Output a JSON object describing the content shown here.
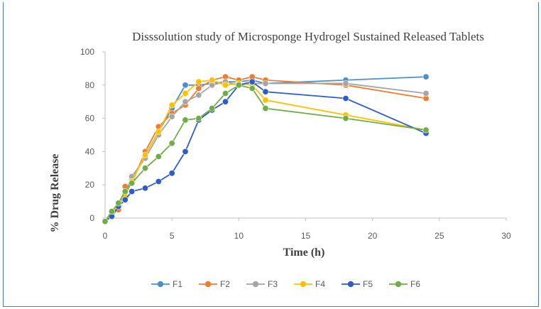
{
  "chart_data": {
    "type": "line",
    "title": "Disssolution study of Microsponge Hydrogel Sustained Released Tablets",
    "xlabel": "Time (h)",
    "ylabel": "% Drug Release",
    "xlim": [
      0,
      30
    ],
    "ylim": [
      0,
      100
    ],
    "x_ticks": [
      "0",
      "5",
      "10",
      "15",
      "20",
      "25",
      "30"
    ],
    "y_ticks": [
      "0",
      "20",
      "40",
      "60",
      "80",
      "100"
    ],
    "legend_position": "bottom",
    "grid": false,
    "series": [
      {
        "name": "F1",
        "color": "#4a90d0",
        "x": [
          0,
          0.5,
          1,
          1.5,
          2,
          3,
          4,
          5,
          6,
          7,
          8,
          9,
          10,
          11,
          12,
          18,
          24
        ],
        "y": [
          -2,
          3,
          7,
          16,
          23,
          38,
          52,
          66,
          80,
          80,
          81,
          82,
          82,
          83,
          81,
          83,
          85
        ]
      },
      {
        "name": "F2",
        "color": "#ed7d31",
        "x": [
          0,
          0.5,
          1,
          1.5,
          2,
          3,
          4,
          5,
          6,
          7,
          8,
          9,
          10,
          11,
          12,
          18,
          24
        ],
        "y": [
          -2,
          2,
          5,
          19,
          21,
          40,
          55,
          63,
          68,
          78,
          83,
          85,
          83,
          85,
          83,
          80,
          72
        ]
      },
      {
        "name": "F3",
        "color": "#a5a5a5",
        "x": [
          0,
          0.5,
          1,
          1.5,
          2,
          3,
          4,
          5,
          6,
          7,
          8,
          9,
          10,
          11,
          12,
          18,
          24
        ],
        "y": [
          -2,
          3,
          8,
          15,
          25,
          36,
          50,
          61,
          70,
          74,
          80,
          82,
          80,
          81,
          81,
          81,
          75
        ]
      },
      {
        "name": "F4",
        "color": "#ffc000",
        "x": [
          0,
          0.5,
          1,
          1.5,
          2,
          3,
          4,
          5,
          6,
          7,
          8,
          9,
          10,
          11,
          12,
          18,
          24
        ],
        "y": [
          -2,
          3,
          8,
          13,
          22,
          38,
          52,
          68,
          75,
          82,
          83,
          80,
          81,
          80,
          71,
          62,
          53
        ]
      },
      {
        "name": "F5",
        "color": "#2e5dc8",
        "x": [
          0,
          0.5,
          1,
          1.5,
          2,
          3,
          4,
          5,
          6,
          7,
          8,
          9,
          10,
          11,
          12,
          18,
          24
        ],
        "y": [
          -2,
          1,
          7,
          11,
          16,
          18,
          22,
          27,
          40,
          59,
          65,
          70,
          80,
          82,
          76,
          72,
          51
        ]
      },
      {
        "name": "F6",
        "color": "#70ad47",
        "x": [
          0,
          0.5,
          1,
          1.5,
          2,
          3,
          4,
          5,
          6,
          7,
          8,
          9,
          10,
          11,
          12,
          18,
          24
        ],
        "y": [
          -2,
          4,
          9,
          16,
          21,
          30,
          37,
          45,
          59,
          60,
          66,
          75,
          80,
          78,
          66,
          60,
          53
        ]
      }
    ]
  }
}
